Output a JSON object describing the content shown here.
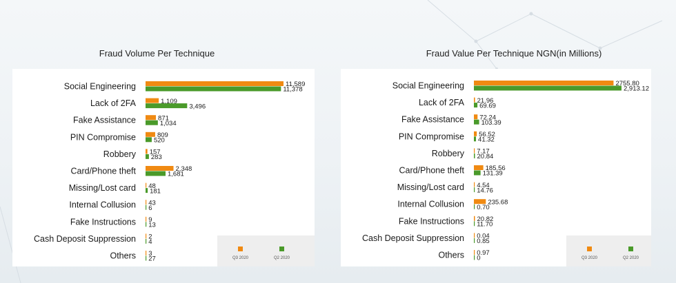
{
  "chart_data": [
    {
      "type": "bar",
      "title": "Fraud Volume Per Technique",
      "xlabel": "",
      "ylabel": "",
      "xlim": [
        0,
        11589
      ],
      "categories": [
        "Social Engineering",
        "Lack of 2FA",
        "Fake Assistance",
        "PIN Compromise",
        "Robbery",
        "Card/Phone theft",
        "Missing/Lost card",
        "Internal Collusion",
        "Fake Instructions",
        "Cash Deposit Suppression",
        "Others"
      ],
      "series": [
        {
          "name": "Q3 2020",
          "color": "#f08a12",
          "values": [
            11589,
            1109,
            871,
            809,
            157,
            2348,
            48,
            43,
            9,
            2,
            3
          ],
          "labels": [
            "11,589",
            "1,109",
            "871",
            "809",
            "157",
            "2,348",
            "48",
            "43",
            "9",
            "2",
            "3"
          ]
        },
        {
          "name": "Q2 2020",
          "color": "#4a9a2a",
          "values": [
            11378,
            3496,
            1034,
            520,
            283,
            1681,
            181,
            6,
            13,
            4,
            27
          ],
          "labels": [
            "11,378",
            "3,496",
            "1,034",
            "520",
            "283",
            "1,681",
            "181",
            "6",
            "13",
            "4",
            "27"
          ]
        }
      ],
      "legend": "bottom-right"
    },
    {
      "type": "bar",
      "title": "Fraud Value Per Technique NGN(in Millions)",
      "xlabel": "",
      "ylabel": "",
      "xlim": [
        0,
        2913.12
      ],
      "categories": [
        "Social Engineering",
        "Lack of 2FA",
        "Fake Assistance",
        "PIN Compromise",
        "Robbery",
        "Card/Phone theft",
        "Missing/Lost card",
        "Internal Collusion",
        "Fake Instructions",
        "Cash Deposit Suppression",
        "Others"
      ],
      "series": [
        {
          "name": "Q3 2020",
          "color": "#f08a12",
          "values": [
            2755.8,
            21.96,
            72.24,
            56.52,
            7.17,
            185.56,
            4.54,
            235.68,
            20.82,
            0.04,
            0.97
          ],
          "labels": [
            "2755.80",
            "21.96",
            "72.24",
            "56.52",
            "7.17",
            "185.56",
            "4.54",
            "235.68",
            "20.82",
            "0.04",
            "0.97"
          ]
        },
        {
          "name": "Q2 2020",
          "color": "#4a9a2a",
          "values": [
            2913.12,
            69.69,
            103.39,
            41.32,
            20.84,
            131.39,
            14.76,
            0.7,
            11.7,
            0.85,
            0
          ],
          "labels": [
            "2,913.12",
            "69.69",
            "103.39",
            "41.32",
            "20.84",
            "131.39",
            "14.76",
            "0.70",
            "11.70",
            "0.85",
            "0"
          ]
        }
      ],
      "legend": "bottom-right"
    }
  ]
}
